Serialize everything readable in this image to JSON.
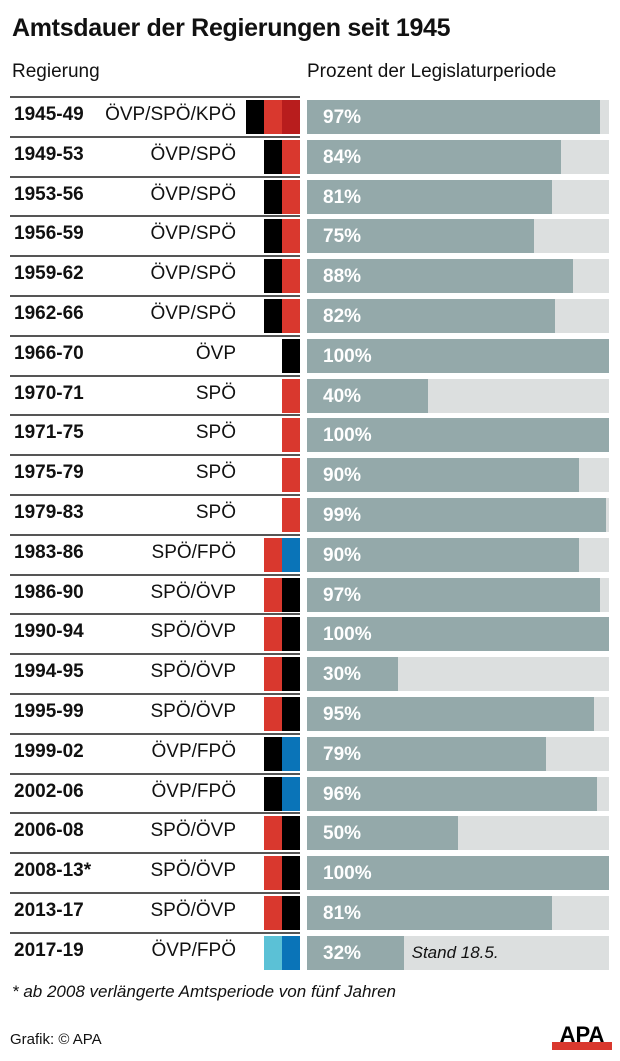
{
  "title": "Amtsdauer der Regierungen seit 1945",
  "header": {
    "left": "Regierung",
    "right": "Prozent der Legislaturperiode"
  },
  "footnote": "* ab 2008 verlängerte Amtsperiode von fünf Jahren",
  "credit": "Grafik: © APA",
  "logo_text": "APA",
  "colors": {
    "ÖVP": "#000000",
    "SPÖ": "#d9382e",
    "KPÖ": "#b81d1d",
    "FPÖ": "#0a74b8",
    "ÖVP_2017": "#5bc1d6",
    "bar": "#94a9aa",
    "track": "#dcdfdf"
  },
  "chart_data": {
    "type": "bar",
    "orientation": "horizontal",
    "title": "Amtsdauer der Regierungen seit 1945",
    "xlabel": "Prozent der Legislaturperiode",
    "ylabel": "Regierung",
    "xlim": [
      0,
      100
    ],
    "rows": [
      {
        "years": "1945-49",
        "government": "ÖVP/SPÖ/KPÖ",
        "parties": [
          "ÖVP",
          "SPÖ",
          "KPÖ"
        ],
        "value": 97,
        "label": "97%"
      },
      {
        "years": "1949-53",
        "government": "ÖVP/SPÖ",
        "parties": [
          "ÖVP",
          "SPÖ"
        ],
        "value": 84,
        "label": "84%"
      },
      {
        "years": "1953-56",
        "government": "ÖVP/SPÖ",
        "parties": [
          "ÖVP",
          "SPÖ"
        ],
        "value": 81,
        "label": "81%"
      },
      {
        "years": "1956-59",
        "government": "ÖVP/SPÖ",
        "parties": [
          "ÖVP",
          "SPÖ"
        ],
        "value": 75,
        "label": "75%"
      },
      {
        "years": "1959-62",
        "government": "ÖVP/SPÖ",
        "parties": [
          "ÖVP",
          "SPÖ"
        ],
        "value": 88,
        "label": "88%"
      },
      {
        "years": "1962-66",
        "government": "ÖVP/SPÖ",
        "parties": [
          "ÖVP",
          "SPÖ"
        ],
        "value": 82,
        "label": "82%"
      },
      {
        "years": "1966-70",
        "government": "ÖVP",
        "parties": [
          "ÖVP"
        ],
        "value": 100,
        "label": "100%"
      },
      {
        "years": "1970-71",
        "government": "SPÖ",
        "parties": [
          "SPÖ"
        ],
        "value": 40,
        "label": "40%"
      },
      {
        "years": "1971-75",
        "government": "SPÖ",
        "parties": [
          "SPÖ"
        ],
        "value": 100,
        "label": "100%"
      },
      {
        "years": "1975-79",
        "government": "SPÖ",
        "parties": [
          "SPÖ"
        ],
        "value": 90,
        "label": "90%"
      },
      {
        "years": "1979-83",
        "government": "SPÖ",
        "parties": [
          "SPÖ"
        ],
        "value": 99,
        "label": "99%"
      },
      {
        "years": "1983-86",
        "government": "SPÖ/FPÖ",
        "parties": [
          "SPÖ",
          "FPÖ"
        ],
        "value": 90,
        "label": "90%"
      },
      {
        "years": "1986-90",
        "government": "SPÖ/ÖVP",
        "parties": [
          "SPÖ",
          "ÖVP"
        ],
        "value": 97,
        "label": "97%"
      },
      {
        "years": "1990-94",
        "government": "SPÖ/ÖVP",
        "parties": [
          "SPÖ",
          "ÖVP"
        ],
        "value": 100,
        "label": "100%"
      },
      {
        "years": "1994-95",
        "government": "SPÖ/ÖVP",
        "parties": [
          "SPÖ",
          "ÖVP"
        ],
        "value": 30,
        "label": "30%"
      },
      {
        "years": "1995-99",
        "government": "SPÖ/ÖVP",
        "parties": [
          "SPÖ",
          "ÖVP"
        ],
        "value": 95,
        "label": "95%"
      },
      {
        "years": "1999-02",
        "government": "ÖVP/FPÖ",
        "parties": [
          "ÖVP",
          "FPÖ"
        ],
        "value": 79,
        "label": "79%"
      },
      {
        "years": "2002-06",
        "government": "ÖVP/FPÖ",
        "parties": [
          "ÖVP",
          "FPÖ"
        ],
        "value": 96,
        "label": "96%"
      },
      {
        "years": "2006-08",
        "government": "SPÖ/ÖVP",
        "parties": [
          "SPÖ",
          "ÖVP"
        ],
        "value": 50,
        "label": "50%"
      },
      {
        "years": "2008-13*",
        "government": "SPÖ/ÖVP",
        "parties": [
          "SPÖ",
          "ÖVP"
        ],
        "value": 100,
        "label": "100%"
      },
      {
        "years": "2013-17",
        "government": "SPÖ/ÖVP",
        "parties": [
          "SPÖ",
          "ÖVP"
        ],
        "value": 81,
        "label": "81%"
      },
      {
        "years": "2017-19",
        "government": "ÖVP/FPÖ",
        "parties": [
          "ÖVP_2017",
          "FPÖ"
        ],
        "value": 32,
        "label": "32%",
        "note": "Stand 18.5."
      }
    ]
  }
}
